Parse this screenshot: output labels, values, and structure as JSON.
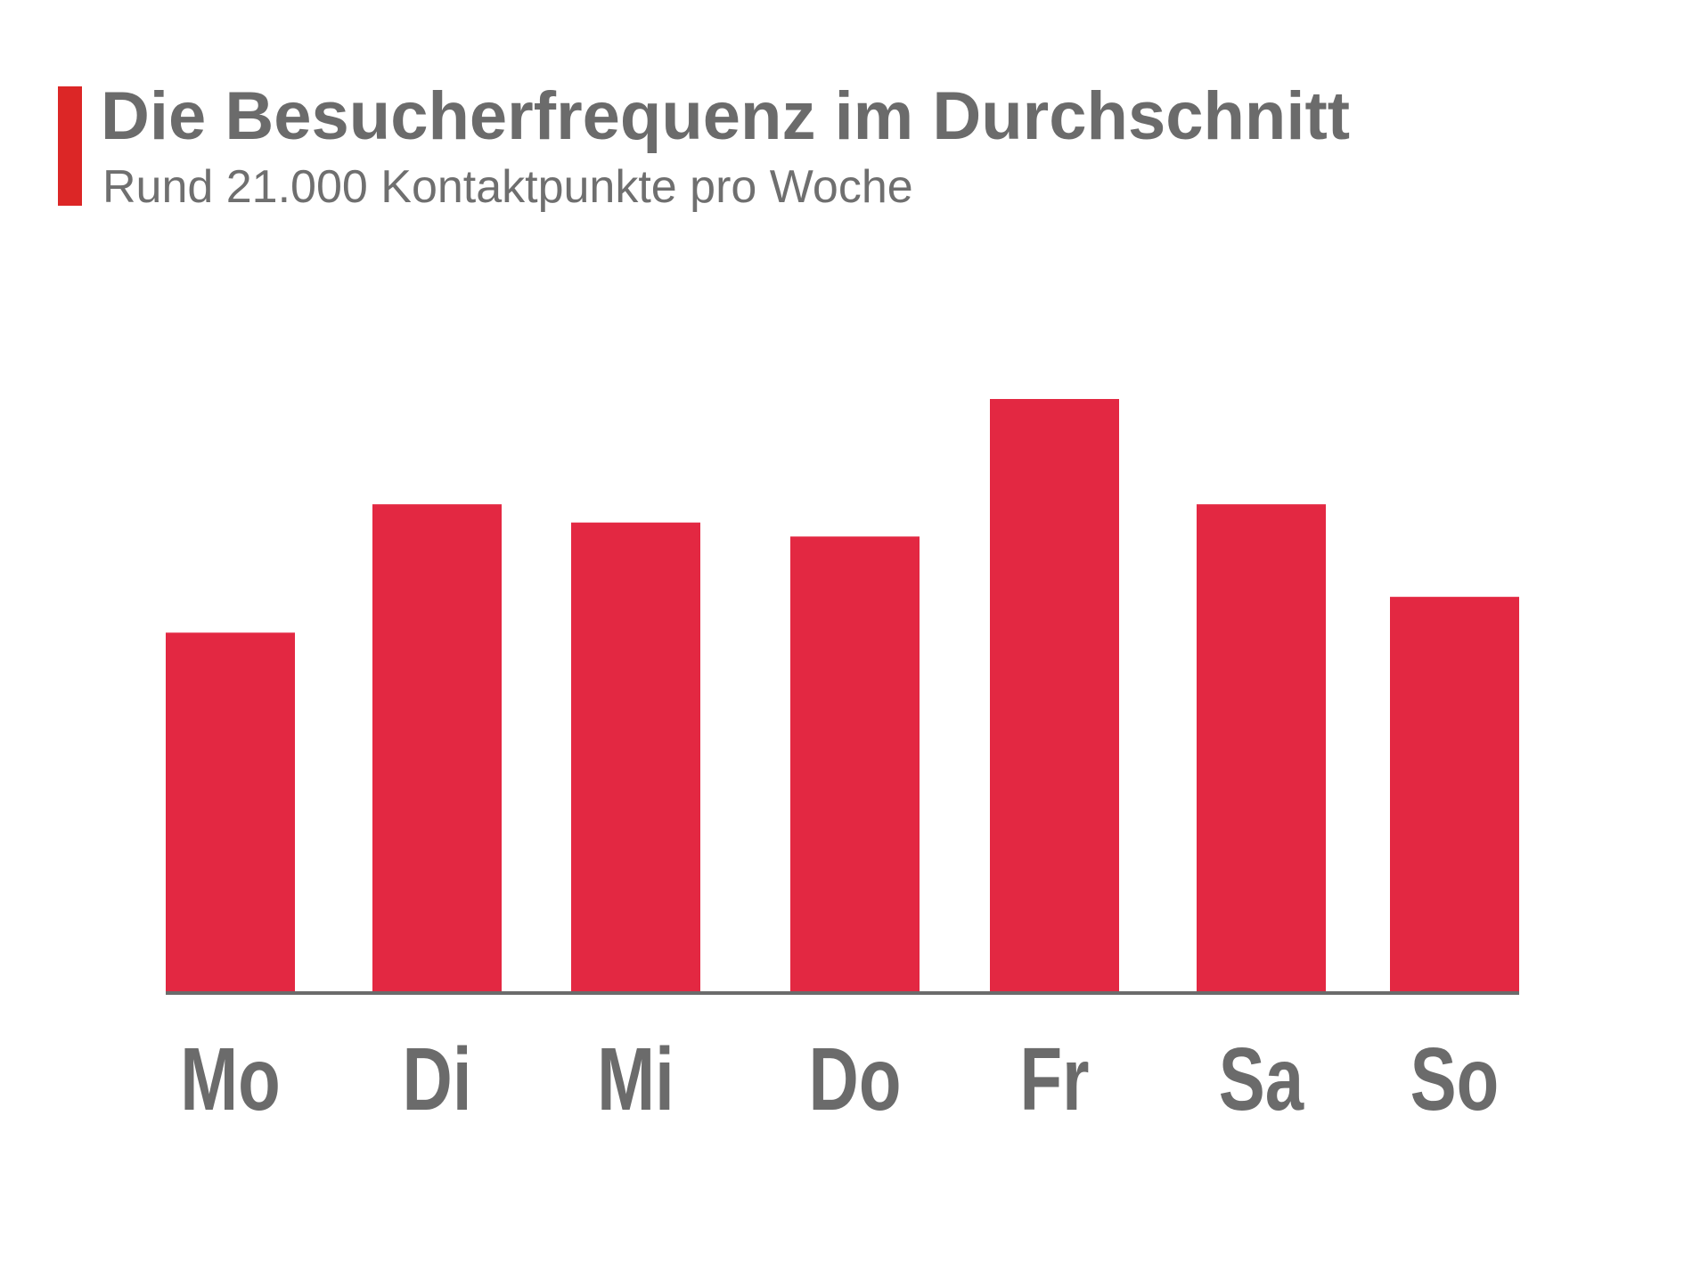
{
  "header": {
    "title": "Die Besucherfrequenz im Durchschnitt",
    "subtitle": "Rund 21.000 Kontaktpunkte pro Woche"
  },
  "colors": {
    "accent": "#dc2626",
    "bar": "#e32842",
    "text": "#6b6b6b",
    "axis": "#6b6b6b"
  },
  "chart_data": {
    "type": "bar",
    "title": "Die Besucherfrequenz im Durchschnitt",
    "subtitle": "Rund 21.000 Kontaktpunkte pro Woche",
    "categories": [
      "Mo",
      "Di",
      "Mi",
      "Do",
      "Fr",
      "Sa",
      "So"
    ],
    "values": [
      2514,
      3414,
      3286,
      3188,
      4152,
      3414,
      2765
    ],
    "xlabel": "",
    "ylabel": "",
    "ylim": [
      0,
      4152
    ],
    "grid": false,
    "legend": "none"
  }
}
